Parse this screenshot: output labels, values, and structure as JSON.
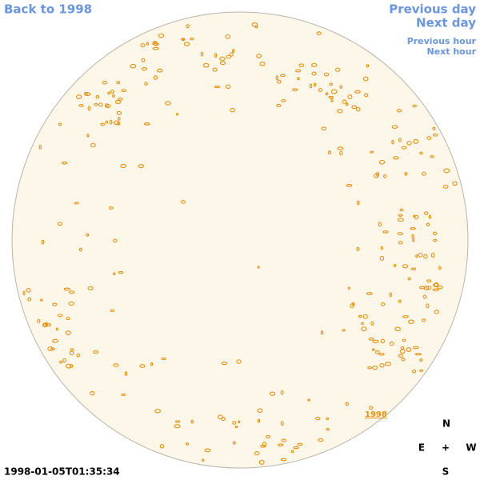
{
  "navigation": {
    "back": "Back to 1998",
    "previous_day": "Previous day",
    "next_day": "Next day",
    "previous_hour": "Previous hour",
    "next_hour": "Next hour"
  },
  "disk": {
    "year_link": "1998"
  },
  "compass": {
    "north": "N",
    "east": "E",
    "center": "+",
    "west": "W",
    "south": "S"
  },
  "timestamp": "1998-01-05T01:35:34"
}
